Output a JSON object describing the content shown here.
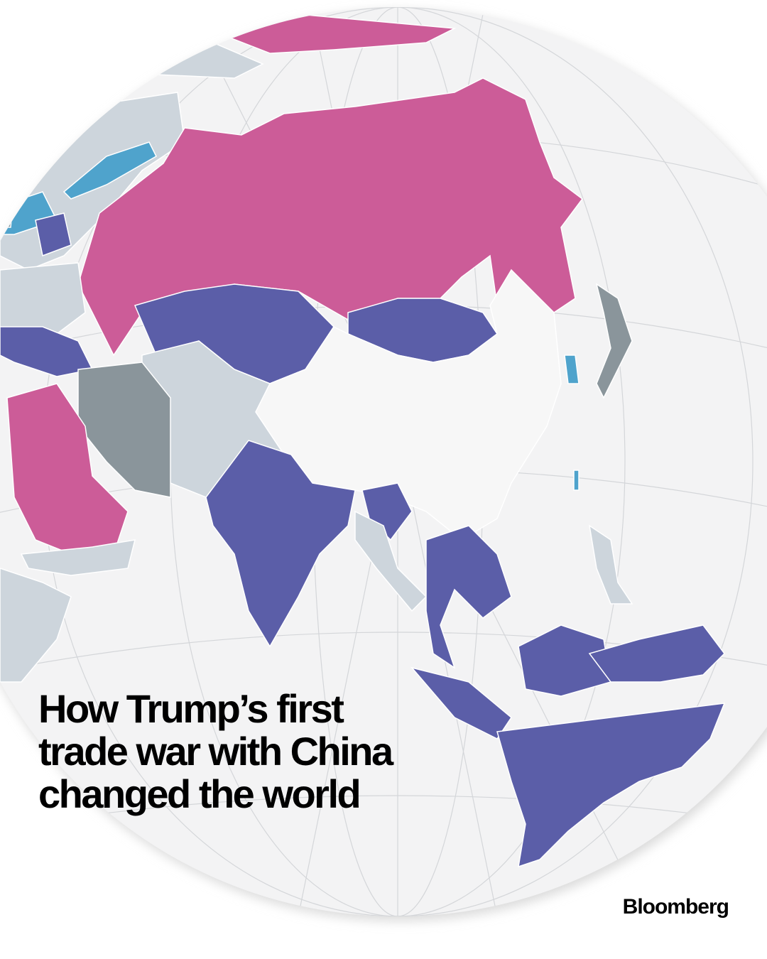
{
  "title_lines": [
    "How Trump’s first",
    "trade war with China",
    "changed the world"
  ],
  "brand": "Bloomberg"
}
